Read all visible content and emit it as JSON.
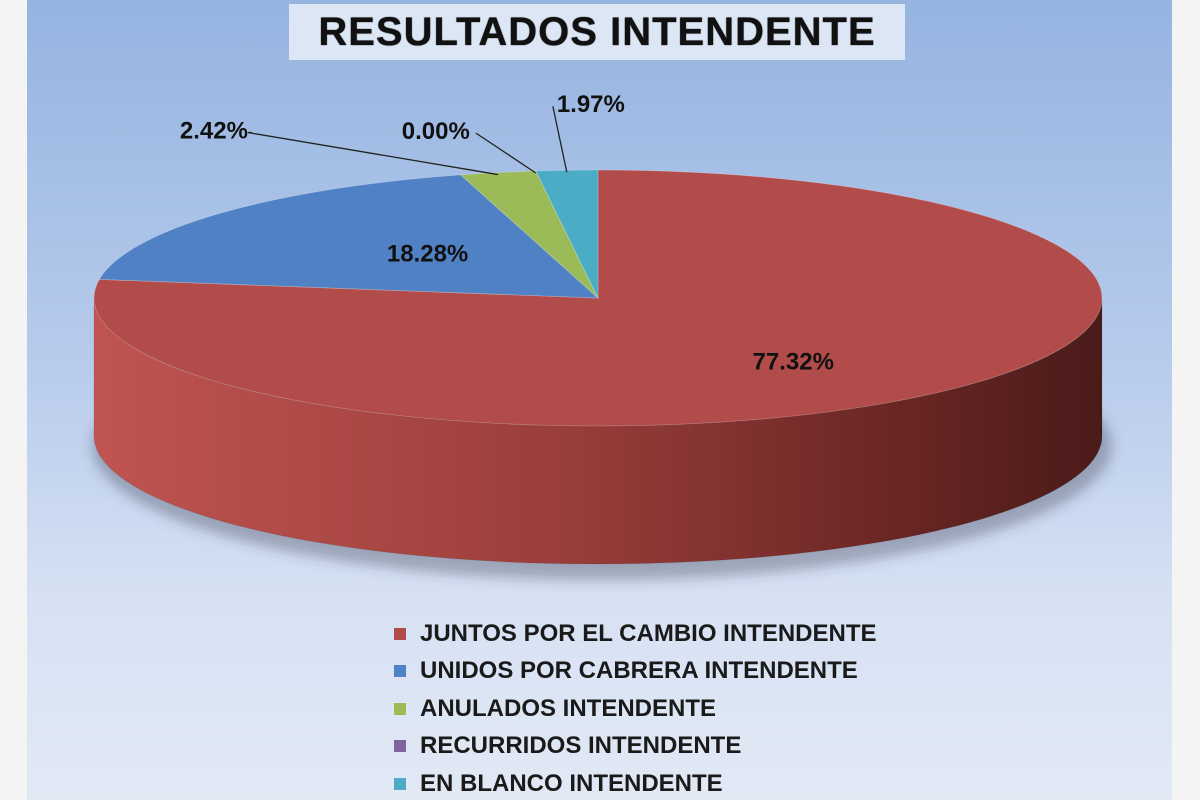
{
  "chart_data": {
    "type": "pie",
    "title": "RESULTADOS INTENDENTE",
    "slices": [
      {
        "label": "JUNTOS POR EL CAMBIO INTENDENTE",
        "value": 77.32,
        "display": "77.32%",
        "color": "#b14c4a"
      },
      {
        "label": "UNIDOS POR CABRERA INTENDENTE",
        "value": 18.28,
        "display": "18.28%",
        "color": "#4f81c4"
      },
      {
        "label": "ANULADOS INTENDENTE",
        "value": 2.42,
        "display": "2.42%",
        "color": "#9bbb59"
      },
      {
        "label": "RECURRIDOS INTENDENTE",
        "value": 0.0,
        "display": "0.00%",
        "color": "#8064a2"
      },
      {
        "label": "EN BLANCO INTENDENTE",
        "value": 1.97,
        "display": "1.97%",
        "color": "#4bacc6"
      }
    ],
    "legend_position": "bottom",
    "style": "3d"
  }
}
